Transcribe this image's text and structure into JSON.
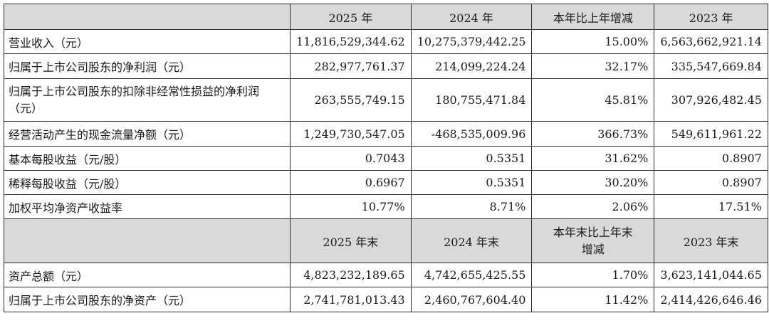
{
  "table1": {
    "headers": [
      "",
      "2025 年",
      "2024 年",
      "本年比上年增减",
      "2023 年"
    ],
    "rows": [
      {
        "label": "营业收入（元）",
        "v2025": "11,816,529,344.62",
        "v2024": "10,275,379,442.25",
        "change": "15.00%",
        "v2023": "6,563,662,921.14"
      },
      {
        "label": "归属于上市公司股东的净利润（元）",
        "v2025": "282,977,761.37",
        "v2024": "214,099,224.24",
        "change": "32.17%",
        "v2023": "335,547,669.84"
      },
      {
        "label": "归属于上市公司股东的扣除非经常性损益的净利润（元）",
        "v2025": "263,555,749.15",
        "v2024": "180,755,471.84",
        "change": "45.81%",
        "v2023": "307,926,482.45"
      },
      {
        "label": "经营活动产生的现金流量净额（元）",
        "v2025": "1,249,730,547.05",
        "v2024": "-468,535,009.96",
        "change": "366.73%",
        "v2023": "549,611,961.22"
      },
      {
        "label": "基本每股收益（元/股）",
        "v2025": "0.7043",
        "v2024": "0.5351",
        "change": "31.62%",
        "v2023": "0.8907"
      },
      {
        "label": "稀释每股收益（元/股）",
        "v2025": "0.6967",
        "v2024": "0.5351",
        "change": "30.20%",
        "v2023": "0.8907"
      },
      {
        "label": "加权平均净资产收益率",
        "v2025": "10.77%",
        "v2024": "8.71%",
        "change": "2.06%",
        "v2023": "17.51%"
      }
    ]
  },
  "table2": {
    "headers": [
      "",
      "2025 年末",
      "2024 年末",
      "本年末比上年末增减",
      "2023 年末"
    ],
    "rows": [
      {
        "label": "资产总额（元）",
        "v2025": "4,823,232,189.65",
        "v2024": "4,742,655,425.55",
        "change": "1.70%",
        "v2023": "3,623,141,044.65"
      },
      {
        "label": "归属于上市公司股东的净资产（元）",
        "v2025": "2,741,781,013.43",
        "v2024": "2,460,767,604.40",
        "change": "11.42%",
        "v2023": "2,414,426,646.46"
      }
    ]
  },
  "colors": {
    "header_bg": "#d9d9d9",
    "border": "#2b2b2b",
    "text": "#1a1a1a"
  }
}
